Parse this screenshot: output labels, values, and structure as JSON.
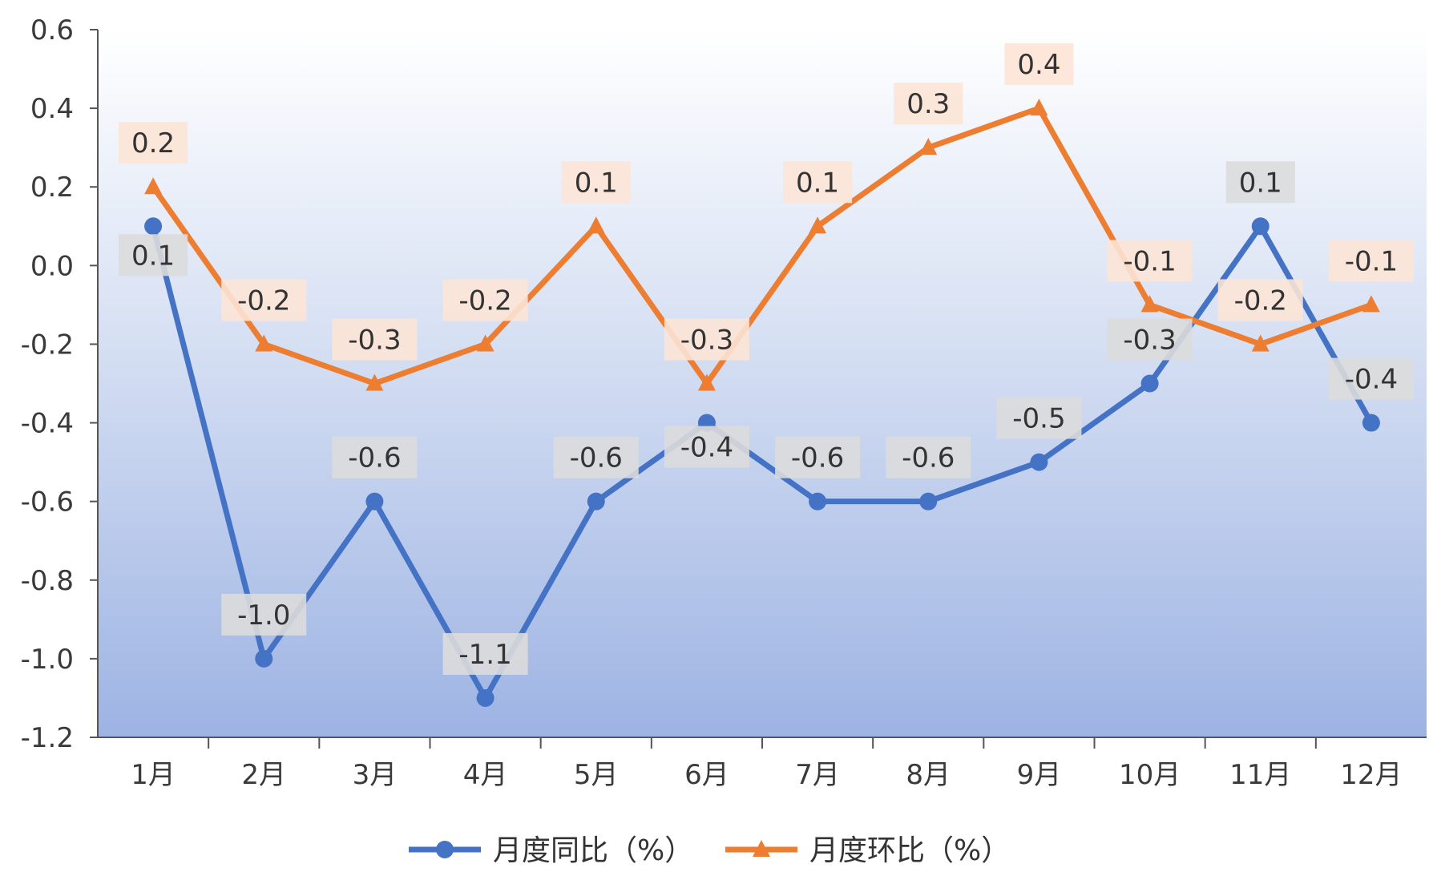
{
  "chart_data": {
    "type": "line",
    "categories": [
      "1月",
      "2月",
      "3月",
      "4月",
      "5月",
      "6月",
      "7月",
      "8月",
      "9月",
      "10月",
      "11月",
      "12月"
    ],
    "series": [
      {
        "name": "月度同比（%）",
        "values": [
          0.1,
          -1.0,
          -0.6,
          -1.1,
          -0.6,
          -0.4,
          -0.6,
          -0.6,
          -0.5,
          -0.3,
          0.1,
          -0.4
        ],
        "labels": [
          "0.1",
          "-1.0",
          "-0.6",
          "-1.1",
          "-0.6",
          "-0.4",
          "-0.6",
          "-0.6",
          "-0.5",
          "-0.3",
          "0.1",
          "-0.4"
        ],
        "color": "#4472C4",
        "marker": "circle",
        "label_bg": "#DCDCDC"
      },
      {
        "name": "月度环比（%）",
        "values": [
          0.2,
          -0.2,
          -0.3,
          -0.2,
          0.1,
          -0.3,
          0.1,
          0.3,
          0.4,
          -0.1,
          -0.2,
          -0.1
        ],
        "labels": [
          "0.2",
          "-0.2",
          "-0.3",
          "-0.2",
          "0.1",
          "-0.3",
          "0.1",
          "0.3",
          "0.4",
          "-0.1",
          "-0.2",
          "-0.1"
        ],
        "color": "#ED7D31",
        "marker": "triangle",
        "label_bg": "#FCE4D6"
      }
    ],
    "ylim": [
      -1.2,
      0.6
    ],
    "yticks": [
      "0.6",
      "0.4",
      "0.2",
      "0.0",
      "-0.2",
      "-0.4",
      "-0.6",
      "-0.8",
      "-1.0",
      "-1.2"
    ],
    "ytick_values": [
      0.6,
      0.4,
      0.2,
      0.0,
      -0.2,
      -0.4,
      -0.6,
      -0.8,
      -1.0,
      -1.2
    ],
    "grid": false,
    "legend_position": "bottom",
    "plot_background": "gradient white-to-light-blue"
  }
}
